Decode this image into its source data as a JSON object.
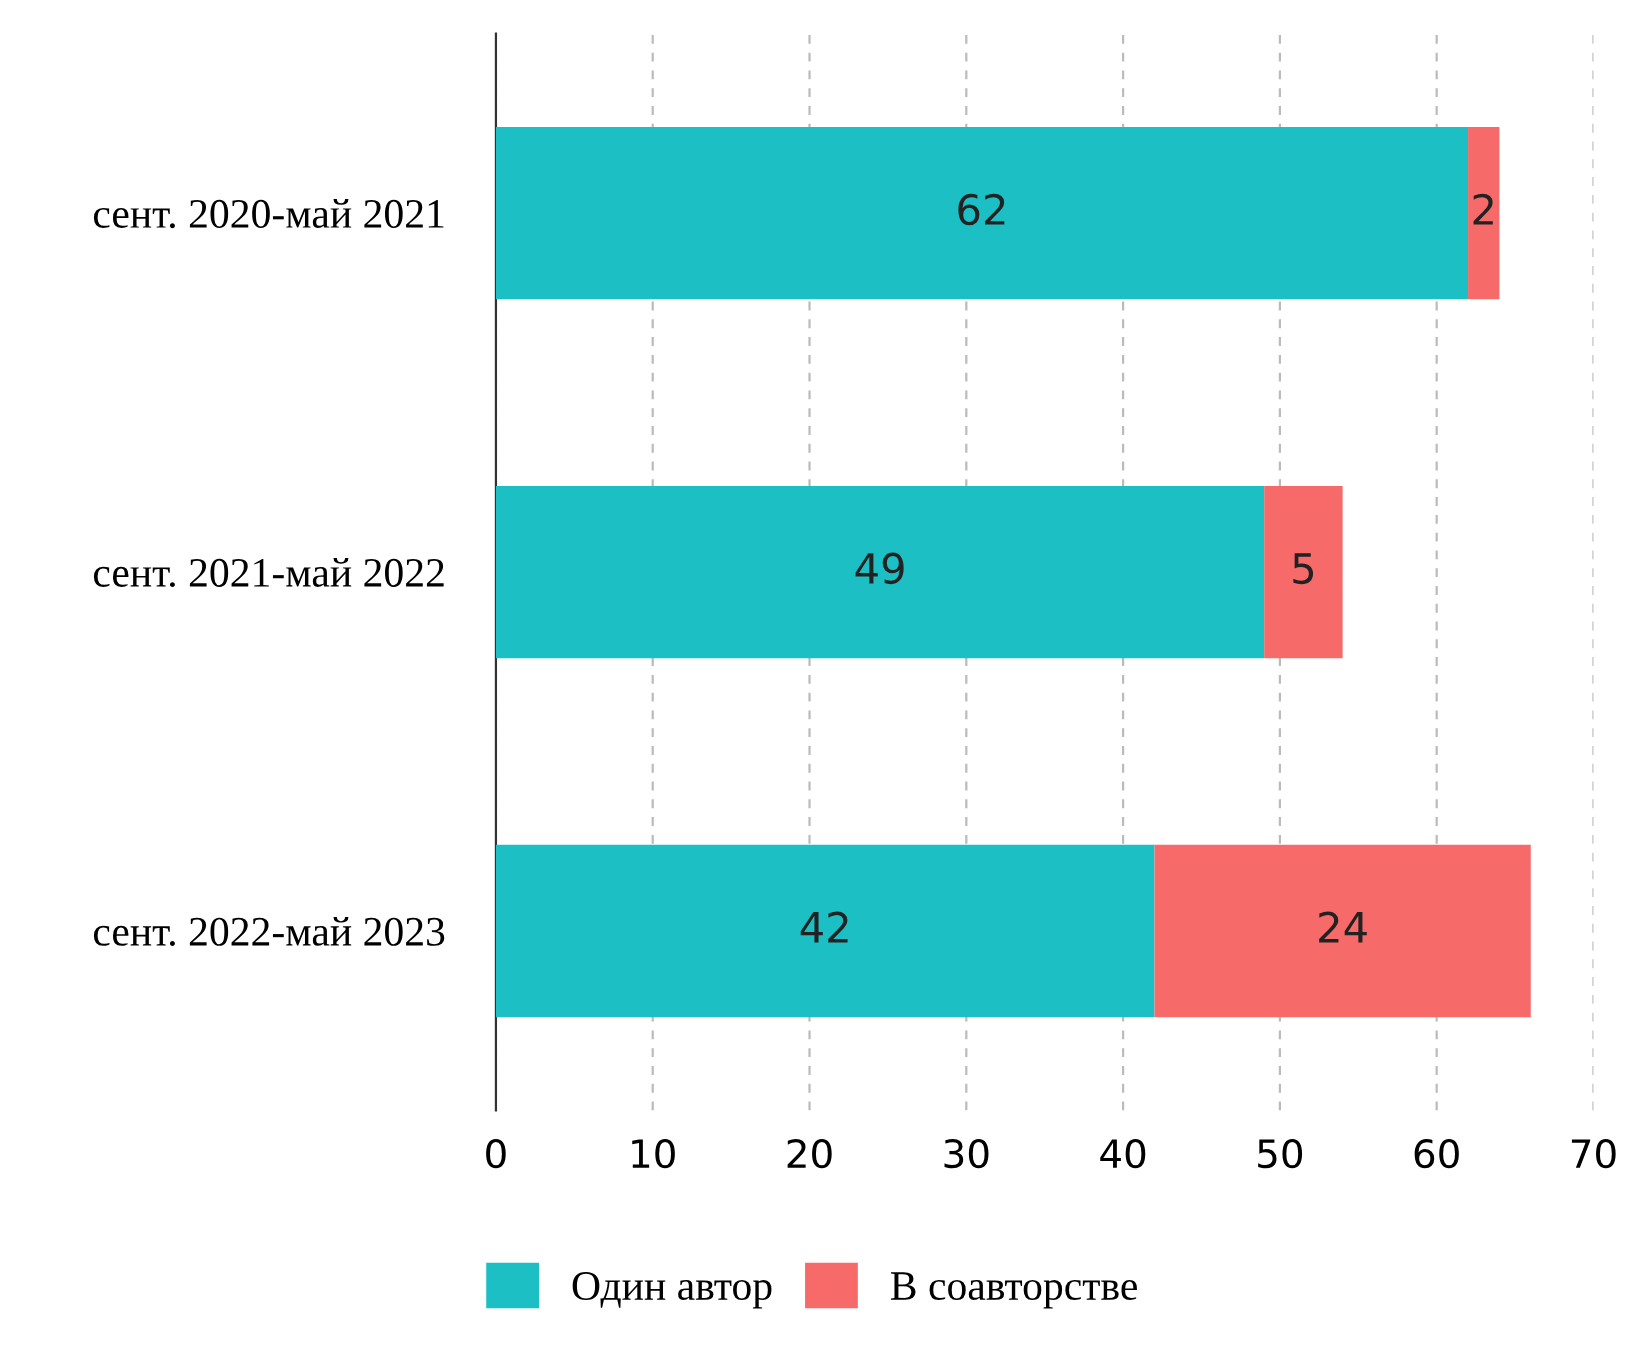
{
  "chart_data": {
    "type": "bar",
    "orientation": "horizontal",
    "stacked": true,
    "categories": [
      "сент. 2020-май 2021",
      "сент. 2021-май 2022",
      "сент. 2022-май 2023"
    ],
    "series": [
      {
        "name": "Один автор",
        "color": "#1bbfc4",
        "values": [
          62,
          49,
          42
        ]
      },
      {
        "name": "В соавторстве",
        "color": "#f76a6a",
        "values": [
          2,
          5,
          24
        ]
      }
    ],
    "xlim": [
      0,
      70
    ],
    "xticks": [
      0,
      10,
      20,
      30,
      40,
      50,
      60,
      70
    ],
    "grid": "x",
    "legend": "bottom",
    "data_labels": true
  }
}
